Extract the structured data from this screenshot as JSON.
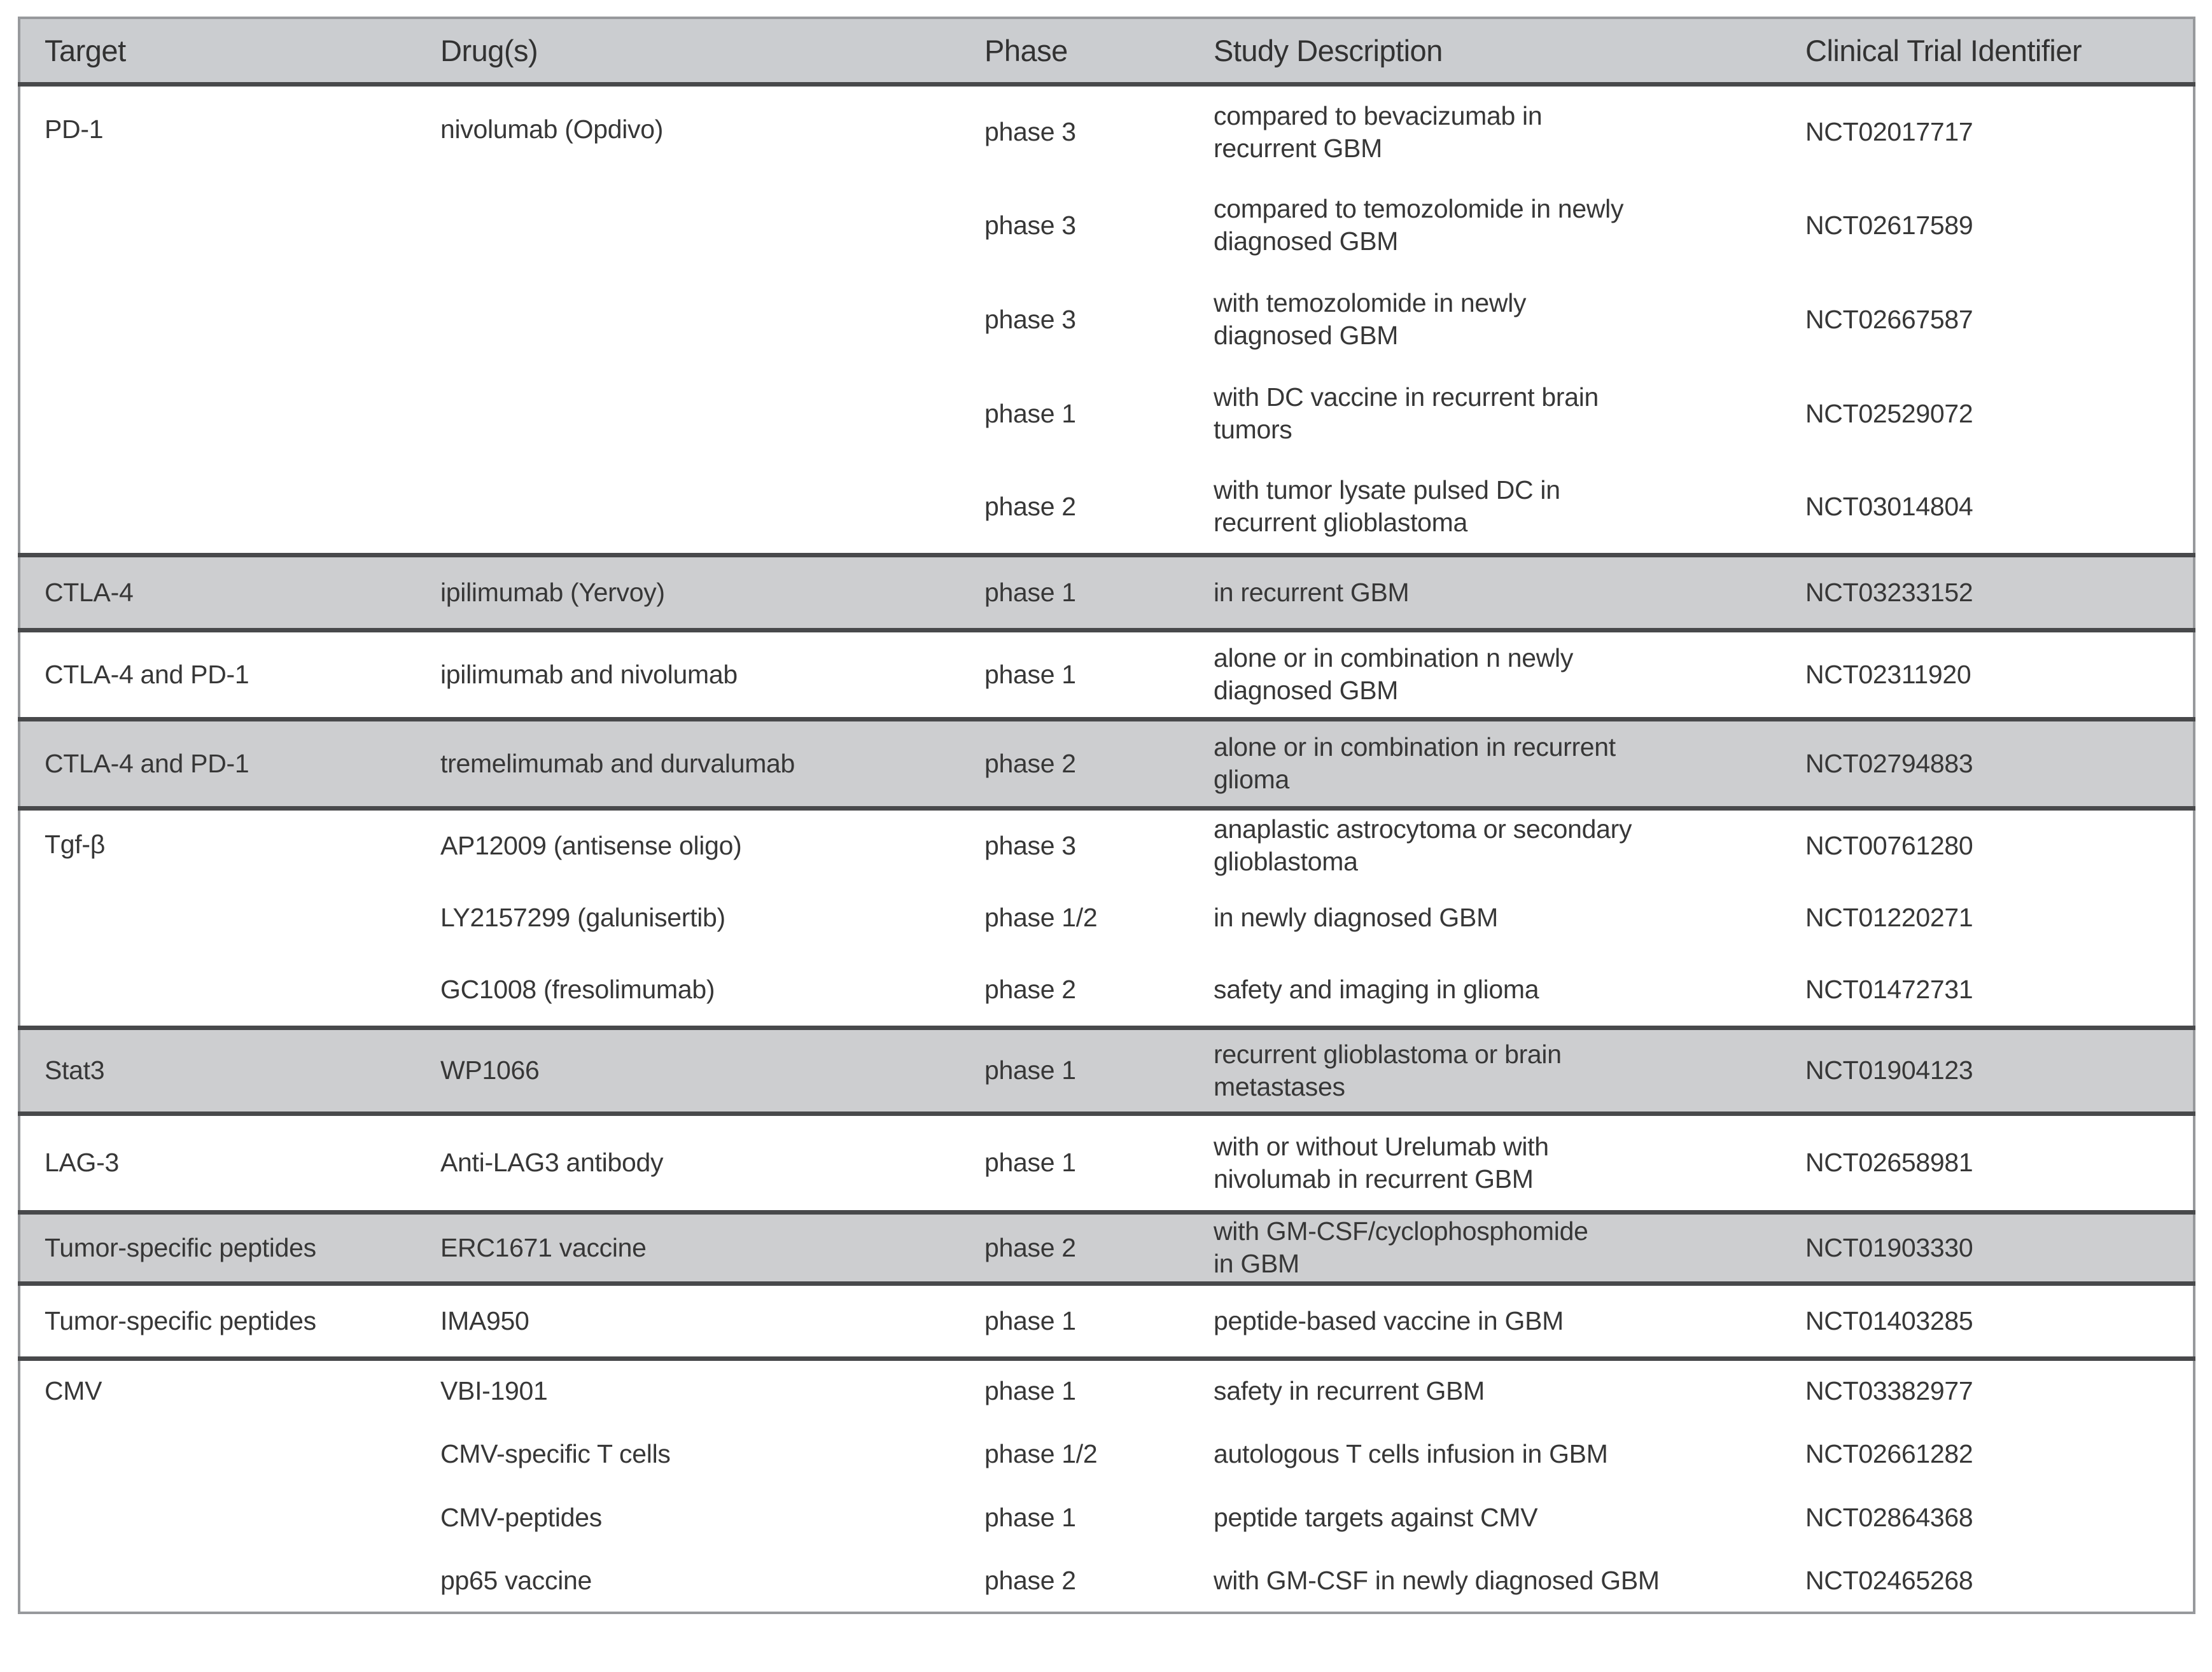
{
  "table": {
    "columns": {
      "target": "Target",
      "drugs": "Drug(s)",
      "phase": "Phase",
      "description": "Study Description",
      "identifier": "Clinical Trial Identifier"
    },
    "colors": {
      "band_gray": "#cdced0",
      "header_gray": "#cbcdd0",
      "separator_dark": "#48494b",
      "outer_border": "#97999c",
      "text": "#373737"
    },
    "groups": [
      {
        "target": "PD-1",
        "drug": "nivolumab (Opdivo)",
        "shaded": false,
        "rows": [
          {
            "phase": "phase 3",
            "description": "compared to bevacizumab in\nrecurrent GBM",
            "nct": "NCT02017717"
          },
          {
            "phase": "phase 3",
            "description": "compared to temozolomide in newly\ndiagnosed GBM",
            "nct": "NCT02617589"
          },
          {
            "phase": "phase 3",
            "description": "with temozolomide in newly\ndiagnosed GBM",
            "nct": "NCT02667587"
          },
          {
            "phase": "phase 1",
            "description": "with DC vaccine in recurrent brain\ntumors",
            "nct": "NCT02529072"
          },
          {
            "phase": "phase 2",
            "description": "with tumor lysate pulsed DC in\nrecurrent glioblastoma",
            "nct": "NCT03014804"
          }
        ]
      },
      {
        "target": "CTLA-4",
        "drug": "ipilimumab (Yervoy)",
        "shaded": true,
        "rows": [
          {
            "phase": "phase 1",
            "description": "in recurrent GBM",
            "nct": "NCT03233152"
          }
        ]
      },
      {
        "target": "CTLA-4 and PD-1",
        "drug": "ipilimumab and nivolumab",
        "shaded": false,
        "rows": [
          {
            "phase": "phase 1",
            "description": "alone or in combination n newly\ndiagnosed GBM",
            "nct": "NCT02311920"
          }
        ]
      },
      {
        "target": "CTLA-4 and PD-1",
        "drug": "tremelimumab and durvalumab",
        "shaded": true,
        "rows": [
          {
            "phase": "phase 2",
            "description": "alone or in combination in recurrent\nglioma",
            "nct": "NCT02794883"
          }
        ]
      },
      {
        "target": "Tgf-β",
        "shaded": false,
        "rows": [
          {
            "drug": "AP12009 (antisense oligo)",
            "phase": "phase 3",
            "description": "anaplastic astrocytoma or secondary\nglioblastoma",
            "nct": "NCT00761280"
          },
          {
            "drug": "LY2157299 (galunisertib)",
            "phase": "phase 1/2",
            "description": "in newly diagnosed GBM",
            "nct": "NCT01220271"
          },
          {
            "drug": "GC1008 (fresolimumab)",
            "phase": "phase 2",
            "description": "safety and imaging in glioma",
            "nct": "NCT01472731"
          }
        ]
      },
      {
        "target": "Stat3",
        "drug": "WP1066",
        "shaded": true,
        "rows": [
          {
            "phase": "phase 1",
            "description": "recurrent glioblastoma or brain\nmetastases",
            "nct": "NCT01904123"
          }
        ]
      },
      {
        "target": "LAG-3",
        "drug": "Anti-LAG3 antibody",
        "shaded": false,
        "rows": [
          {
            "phase": "phase 1",
            "description": "with or without Urelumab with\nnivolumab in recurrent GBM",
            "nct": "NCT02658981"
          }
        ]
      },
      {
        "target": "Tumor-specific peptides",
        "drug": "ERC1671 vaccine",
        "shaded": true,
        "rows": [
          {
            "phase": "phase 2",
            "description": "with GM-CSF/cyclophosphomide\nin GBM",
            "nct": "NCT01903330"
          }
        ]
      },
      {
        "target": "Tumor-specific peptides",
        "drug": "IMA950",
        "shaded": false,
        "rows": [
          {
            "phase": "phase 1",
            "description": "peptide-based vaccine in GBM",
            "nct": "NCT01403285"
          }
        ]
      },
      {
        "target": "CMV",
        "shaded": false,
        "rows": [
          {
            "drug": "VBI-1901",
            "phase": "phase 1",
            "description": "safety in recurrent GBM",
            "nct": "NCT03382977"
          },
          {
            "drug": "CMV-specific T cells",
            "phase": "phase 1/2",
            "description": "autologous T cells infusion in GBM",
            "nct": "NCT02661282"
          },
          {
            "drug": "CMV-peptides",
            "phase": "phase 1",
            "description": "peptide targets against CMV",
            "nct": "NCT02864368"
          },
          {
            "drug": "pp65 vaccine",
            "phase": "phase 2",
            "description": "with GM-CSF in newly diagnosed GBM",
            "nct": "NCT02465268"
          }
        ]
      }
    ]
  }
}
